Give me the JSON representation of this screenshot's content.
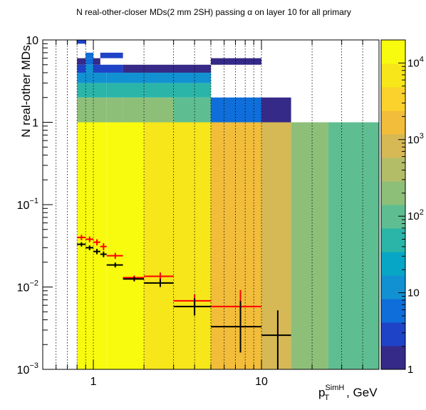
{
  "chart_data": {
    "type": "heatmap",
    "title": "N real-other-closer MDs(2 mm 2SH) passing α on layer 10 for all primary",
    "xlabel": {
      "base": "p",
      "sub": "T",
      "sup": "SimH",
      "suffix": ", GeV"
    },
    "ylabel": "N real-other MDs",
    "x_scale": "log",
    "y_scale": "log",
    "xlim": [
      0.5,
      50
    ],
    "ylim": [
      0.001,
      10
    ],
    "x_ticks": [
      {
        "value": 1,
        "label": "1"
      },
      {
        "value": 10,
        "label": "10"
      }
    ],
    "y_ticks": [
      {
        "value": 10,
        "base": "10",
        "exp": ""
      },
      {
        "value": 1,
        "base": "1",
        "exp": ""
      },
      {
        "value": 0.1,
        "base": "10",
        "exp": "−1"
      },
      {
        "value": 0.01,
        "base": "10",
        "exp": "−2"
      },
      {
        "value": 0.001,
        "base": "10",
        "exp": "−3"
      }
    ],
    "grid": {
      "x": true,
      "y": false
    },
    "z_scale": "log",
    "zlim": [
      1,
      20000
    ],
    "z_ticks": [
      {
        "value": 1,
        "base": "1",
        "exp": ""
      },
      {
        "value": 10,
        "base": "10",
        "exp": ""
      },
      {
        "value": 100,
        "base": "10",
        "exp": "2"
      },
      {
        "value": 1000,
        "base": "10",
        "exp": "3"
      },
      {
        "value": 10000,
        "base": "10",
        "exp": "4"
      }
    ],
    "x_bin_edges": [
      0.8,
      0.9,
      1.0,
      1.1,
      1.2,
      1.5,
      2.0,
      3.0,
      5.0,
      10.0,
      15.0,
      25.0,
      50.0
    ],
    "heatmap_cells": [
      {
        "x": [
          0.8,
          1.2
        ],
        "y": [
          0.001,
          1
        ],
        "z": 12000
      },
      {
        "x": [
          1.2,
          2.0
        ],
        "y": [
          0.001,
          1
        ],
        "z": 10000
      },
      {
        "x": [
          2.0,
          3.0
        ],
        "y": [
          0.001,
          1
        ],
        "z": 9000
      },
      {
        "x": [
          3.0,
          5.0
        ],
        "y": [
          0.001,
          1
        ],
        "z": 5500
      },
      {
        "x": [
          5.0,
          10.0
        ],
        "y": [
          0.001,
          1
        ],
        "z": 2000
      },
      {
        "x": [
          10.0,
          15.0
        ],
        "y": [
          0.001,
          1
        ],
        "z": 600
      },
      {
        "x": [
          15.0,
          25.0
        ],
        "y": [
          0.001,
          1
        ],
        "z": 200
      },
      {
        "x": [
          25.0,
          50.0
        ],
        "y": [
          0.001,
          1
        ],
        "z": 100
      },
      {
        "x": [
          0.8,
          1.2
        ],
        "y": [
          1,
          2
        ],
        "z": 250
      },
      {
        "x": [
          1.2,
          1.5
        ],
        "y": [
          1,
          2
        ],
        "z": 160
      },
      {
        "x": [
          1.5,
          2.0
        ],
        "y": [
          1,
          2
        ],
        "z": 250
      },
      {
        "x": [
          2.0,
          3.0
        ],
        "y": [
          1,
          2
        ],
        "z": 160
      },
      {
        "x": [
          3.0,
          5.0
        ],
        "y": [
          1,
          2
        ],
        "z": 80
      },
      {
        "x": [
          5.0,
          10.0
        ],
        "y": [
          1,
          2
        ],
        "z": 8
      },
      {
        "x": [
          10.0,
          15.0
        ],
        "y": [
          1,
          2
        ],
        "z": 2
      },
      {
        "x": [
          0.8,
          1.2
        ],
        "y": [
          2,
          3
        ],
        "z": 50
      },
      {
        "x": [
          1.2,
          5.0
        ],
        "y": [
          2,
          3
        ],
        "z": 40
      },
      {
        "x": [
          0.8,
          1.2
        ],
        "y": [
          3,
          4
        ],
        "z": 12
      },
      {
        "x": [
          1.2,
          5.0
        ],
        "y": [
          3,
          4
        ],
        "z": 9
      },
      {
        "x": [
          0.8,
          0.9
        ],
        "y": [
          4,
          5
        ],
        "z": 4
      },
      {
        "x": [
          0.9,
          1.0
        ],
        "y": [
          4,
          5
        ],
        "z": 10
      },
      {
        "x": [
          1.0,
          1.5
        ],
        "y": [
          4,
          5
        ],
        "z": 4
      },
      {
        "x": [
          1.5,
          5.0
        ],
        "y": [
          4,
          5
        ],
        "z": 2
      },
      {
        "x": [
          0.8,
          0.9
        ],
        "y": [
          5,
          6
        ],
        "z": 1
      },
      {
        "x": [
          0.9,
          1.0
        ],
        "y": [
          5,
          6
        ],
        "z": 6
      },
      {
        "x": [
          1.0,
          1.1
        ],
        "y": [
          5,
          6
        ],
        "z": 1
      },
      {
        "x": [
          0.9,
          1.0
        ],
        "y": [
          6,
          7
        ],
        "z": 8
      },
      {
        "x": [
          1.1,
          1.5
        ],
        "y": [
          6,
          7
        ],
        "z": 4
      },
      {
        "x": [
          5.0,
          10.0
        ],
        "y": [
          5,
          6
        ],
        "z": 1
      },
      {
        "x": [
          0.8,
          0.9
        ],
        "y": [
          9,
          10
        ],
        "z": 3
      }
    ],
    "series": [
      {
        "color": "#ff0000",
        "points": [
          {
            "x": 0.85,
            "y": 0.04,
            "xerr": [
              0.8,
              0.9
            ],
            "yerr": [
              0.037,
              0.043
            ]
          },
          {
            "x": 0.95,
            "y": 0.038,
            "xerr": [
              0.9,
              1.0
            ],
            "yerr": [
              0.035,
              0.041
            ]
          },
          {
            "x": 1.05,
            "y": 0.035,
            "xerr": [
              1.0,
              1.1
            ],
            "yerr": [
              0.032,
              0.038
            ]
          },
          {
            "x": 1.15,
            "y": 0.031,
            "xerr": [
              1.1,
              1.2
            ],
            "yerr": [
              0.028,
              0.034
            ]
          },
          {
            "x": 1.35,
            "y": 0.024,
            "xerr": [
              1.2,
              1.5
            ],
            "yerr": [
              0.022,
              0.026
            ]
          },
          {
            "x": 1.75,
            "y": 0.013,
            "xerr": [
              1.5,
              2.0
            ],
            "yerr": [
              0.0122,
              0.0138
            ]
          },
          {
            "x": 2.5,
            "y": 0.0135,
            "xerr": [
              2.0,
              3.0
            ],
            "yerr": [
              0.0122,
              0.015
            ]
          },
          {
            "x": 4.0,
            "y": 0.0068,
            "xerr": [
              3.0,
              5.0
            ],
            "yerr": [
              0.0057,
              0.0081
            ]
          },
          {
            "x": 7.5,
            "y": 0.0058,
            "xerr": [
              5.0,
              10.0
            ],
            "yerr": [
              0.0035,
              0.0092
            ]
          }
        ]
      },
      {
        "color": "#000000",
        "points": [
          {
            "x": 0.85,
            "y": 0.033,
            "xerr": [
              0.8,
              0.9
            ],
            "yerr": [
              0.031,
              0.035
            ]
          },
          {
            "x": 0.95,
            "y": 0.03,
            "xerr": [
              0.9,
              1.0
            ],
            "yerr": [
              0.028,
              0.032
            ]
          },
          {
            "x": 1.05,
            "y": 0.027,
            "xerr": [
              1.0,
              1.1
            ],
            "yerr": [
              0.025,
              0.029
            ]
          },
          {
            "x": 1.15,
            "y": 0.025,
            "xerr": [
              1.1,
              1.2
            ],
            "yerr": [
              0.023,
              0.027
            ]
          },
          {
            "x": 1.35,
            "y": 0.0185,
            "xerr": [
              1.2,
              1.5
            ],
            "yerr": [
              0.0173,
              0.0198
            ]
          },
          {
            "x": 1.75,
            "y": 0.0125,
            "xerr": [
              1.5,
              2.0
            ],
            "yerr": [
              0.0117,
              0.0133
            ]
          },
          {
            "x": 2.5,
            "y": 0.0112,
            "xerr": [
              2.0,
              3.0
            ],
            "yerr": [
              0.01,
              0.0125
            ]
          },
          {
            "x": 4.0,
            "y": 0.0058,
            "xerr": [
              3.0,
              5.0
            ],
            "yerr": [
              0.0045,
              0.0073
            ]
          },
          {
            "x": 7.5,
            "y": 0.0033,
            "xerr": [
              5.0,
              10.0
            ],
            "yerr": [
              0.0016,
              0.0068
            ]
          },
          {
            "x": 12.5,
            "y": 0.0026,
            "xerr": [
              10.0,
              15.0
            ],
            "yerr": [
              0.001,
              0.0052
            ]
          }
        ]
      }
    ],
    "colors": {
      "palette": [
        "#352a87",
        "#1f43c7",
        "#0f6ed9",
        "#1291d2",
        "#08a6c6",
        "#2bb5a8",
        "#5fbe91",
        "#8dbf79",
        "#b3bd68",
        "#d6b855",
        "#f2bd3a",
        "#fbd22b",
        "#f6e61a",
        "#f9fb0e"
      ]
    }
  }
}
